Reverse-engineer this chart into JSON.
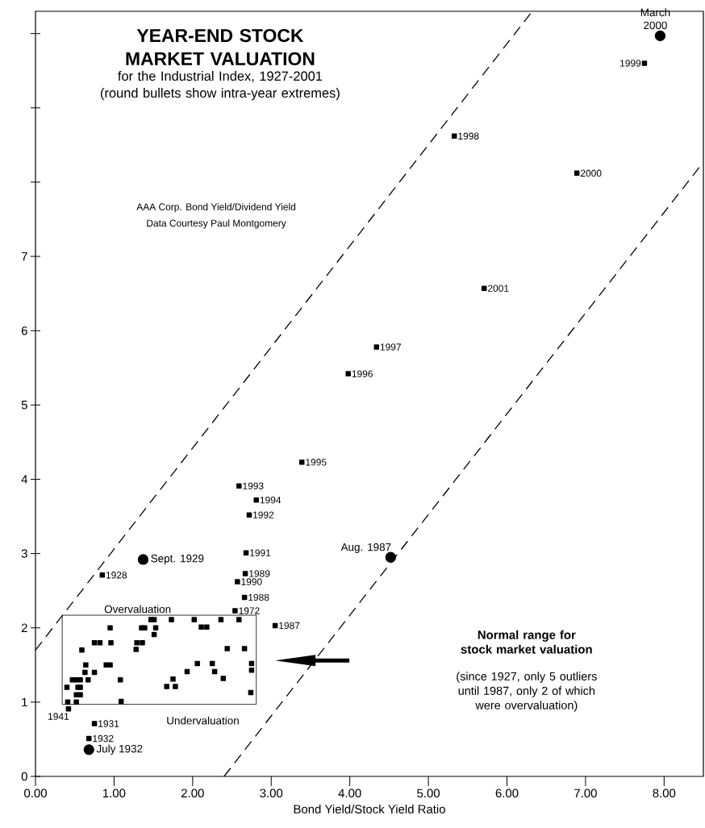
{
  "chart_data": {
    "type": "scatter",
    "title": "YEAR-END STOCK MARKET VALUATION",
    "subtitle": "for the Industrial Index, 1927-2001 (round bullets show intra-year extremes)",
    "xlabel": "Bond Yield/Stock Yield Ratio",
    "xlim": [
      0,
      8.5
    ],
    "ylim": [
      0,
      10.3
    ],
    "xticks": [
      {
        "value": 0,
        "label": "0.00"
      },
      {
        "value": 1,
        "label": "1.00"
      },
      {
        "value": 2,
        "label": "2.00"
      },
      {
        "value": 3,
        "label": "3.00"
      },
      {
        "value": 4,
        "label": "4.00"
      },
      {
        "value": 5,
        "label": "5.00"
      },
      {
        "value": 6,
        "label": "6.00"
      },
      {
        "value": 7,
        "label": "7.00"
      },
      {
        "value": 8,
        "label": "8.00"
      }
    ],
    "yticks": [
      0,
      1,
      2,
      3,
      4,
      5,
      6,
      7,
      {
        "value": 8,
        "label": null
      },
      {
        "value": 9,
        "label": null
      },
      {
        "value": 10,
        "label": null
      }
    ],
    "grid": false,
    "series": [
      {
        "type": "scatter",
        "marker": "square",
        "color": "#000000",
        "x": [
          7.75,
          5.33,
          6.89,
          5.71,
          4.34,
          3.98,
          3.39,
          2.59,
          2.81,
          2.72,
          2.68,
          2.67,
          2.57,
          2.66,
          2.54,
          3.05,
          0.85,
          0.75,
          0.68,
          0.42
        ],
        "values": [
          9.6,
          8.62,
          8.12,
          6.57,
          5.78,
          5.42,
          4.23,
          3.91,
          3.72,
          3.52,
          3.01,
          2.73,
          2.62,
          2.41,
          2.23,
          2.03,
          2.71,
          0.71,
          0.51,
          0.91
        ]
      },
      {
        "type": "scatter",
        "marker": "circle",
        "color": "#000000",
        "x": [
          7.95,
          1.37,
          4.52,
          0.68
        ],
        "values": [
          9.97,
          2.92,
          2.95,
          0.36
        ]
      },
      {
        "type": "scatter",
        "marker": "square",
        "color": "#000000",
        "x": [
          1.47,
          1.51,
          1.73,
          2.02,
          2.36,
          2.59,
          0.95,
          1.35,
          1.39,
          1.53,
          2.11,
          2.18,
          1.51,
          0.75,
          0.82,
          0.96,
          1.29,
          1.36,
          1.28,
          0.59,
          2.44,
          2.66,
          0.9,
          0.95,
          0.64,
          2.06,
          2.25,
          2.75,
          0.63,
          0.75,
          1.93,
          2.28,
          2.75,
          0.47,
          0.52,
          0.57,
          0.67,
          1.08,
          1.75,
          2.39,
          0.4,
          0.54,
          0.57,
          1.67,
          1.78,
          0.52,
          0.57,
          2.74,
          0.41,
          0.52,
          1.09
        ],
        "values": [
          2.11,
          2.11,
          2.11,
          2.11,
          2.11,
          2.11,
          2.0,
          2.0,
          2.0,
          2.0,
          2.01,
          2.01,
          1.91,
          1.8,
          1.8,
          1.8,
          1.8,
          1.8,
          1.71,
          1.7,
          1.72,
          1.72,
          1.5,
          1.5,
          1.5,
          1.52,
          1.52,
          1.52,
          1.4,
          1.4,
          1.41,
          1.41,
          1.43,
          1.3,
          1.3,
          1.3,
          1.3,
          1.3,
          1.31,
          1.32,
          1.2,
          1.2,
          1.2,
          1.21,
          1.21,
          1.1,
          1.1,
          1.13,
          1.0,
          1.0,
          1.01
        ]
      },
      {
        "type": "line",
        "marker": "none",
        "line_style": "dashed",
        "color": "#000000",
        "x": [
          0,
          6.3
        ],
        "values": [
          1.7,
          10.27
        ]
      },
      {
        "type": "line",
        "marker": "none",
        "line_style": "dashed",
        "color": "#000000",
        "x": [
          2.4,
          8.5
        ],
        "values": [
          0,
          8.27
        ]
      }
    ],
    "annotations": [
      {
        "text": "1999",
        "x": 7.75,
        "y": 9.6
      },
      {
        "text": "1998",
        "x": 5.33,
        "y": 8.62
      },
      {
        "text": "2000",
        "x": 6.89,
        "y": 8.12
      },
      {
        "text": "2001",
        "x": 5.71,
        "y": 6.57
      },
      {
        "text": "1997",
        "x": 4.34,
        "y": 5.78
      },
      {
        "text": "1996",
        "x": 3.98,
        "y": 5.42
      },
      {
        "text": "1995",
        "x": 3.39,
        "y": 4.23
      },
      {
        "text": "1993",
        "x": 2.59,
        "y": 3.91
      },
      {
        "text": "1994",
        "x": 2.81,
        "y": 3.72
      },
      {
        "text": "1992",
        "x": 2.72,
        "y": 3.52
      },
      {
        "text": "1991",
        "x": 2.68,
        "y": 3.01
      },
      {
        "text": "1989",
        "x": 2.67,
        "y": 2.73
      },
      {
        "text": "1990",
        "x": 2.57,
        "y": 2.62
      },
      {
        "text": "1988",
        "x": 2.66,
        "y": 2.41
      },
      {
        "text": "1972",
        "x": 2.54,
        "y": 2.23
      },
      {
        "text": "1987",
        "x": 3.05,
        "y": 2.03
      },
      {
        "text": "1928",
        "x": 0.85,
        "y": 2.71
      },
      {
        "text": "1931",
        "x": 0.75,
        "y": 0.71
      },
      {
        "text": "1932",
        "x": 0.68,
        "y": 0.51
      },
      {
        "text": "1941",
        "x": 0.42,
        "y": 0.91
      },
      {
        "text": "March 2000",
        "x": 7.95,
        "y": 9.97
      },
      {
        "text": "Sept. 1929",
        "x": 1.37,
        "y": 2.92
      },
      {
        "text": "Aug. 1987",
        "x": 4.52,
        "y": 2.95
      },
      {
        "text": "July 1932",
        "x": 0.68,
        "y": 0.36
      },
      "Overvaluation",
      "Undervaluation",
      "Normal range for stock market valuation",
      "(since 1927, only 5 outliers until 1987, only 2 of which were overvaluation)",
      "AAA Corp. Bond Yield/Dividend Yield",
      "Data Courtesy Paul Montgomery"
    ]
  }
}
